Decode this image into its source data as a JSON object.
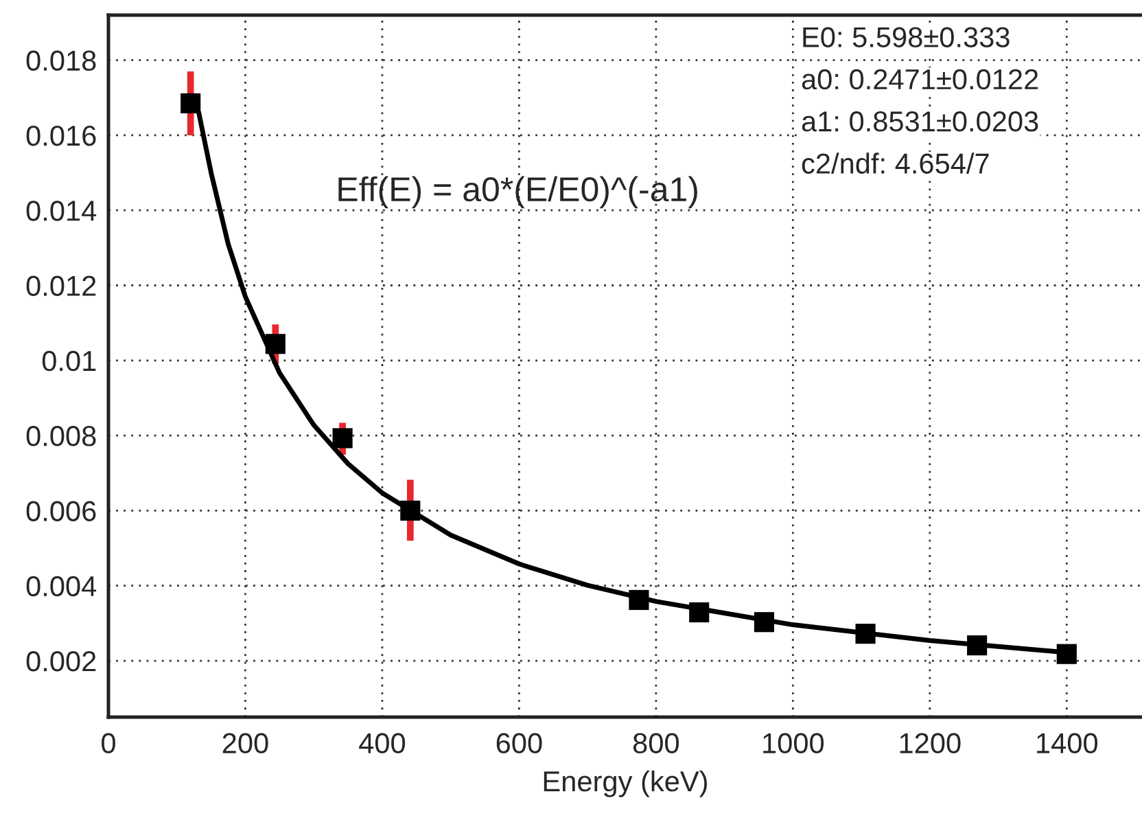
{
  "chart_data": {
    "type": "scatter",
    "xlabel": "Energy (keV)",
    "x": [
      120,
      244,
      342,
      441,
      775,
      863,
      958,
      1106,
      1269,
      1400
    ],
    "series": [
      {
        "color": "#000000",
        "marker": "square",
        "values": [
          0.01685,
          0.01044,
          0.00793,
          0.006,
          0.00362,
          0.00329,
          0.00303,
          0.00272,
          0.00241,
          0.00218
        ],
        "errors": [
          [
            0.016,
            0.0177
          ],
          [
            0.00991,
            0.01096
          ],
          [
            0.00749,
            0.00834
          ],
          [
            0.0052,
            0.00682
          ],
          null,
          null,
          null,
          null,
          null,
          null
        ]
      },
      {
        "type": "line",
        "color": "#000000",
        "line_style": "solid",
        "x": [
          132,
          150,
          175,
          200,
          250,
          300,
          350,
          400,
          500,
          600,
          700,
          800,
          1000,
          1200,
          1400
        ],
        "values": [
          0.0166,
          0.015,
          0.0131,
          0.0117,
          0.00967,
          0.00828,
          0.00725,
          0.00647,
          0.00535,
          0.00458,
          0.00401,
          0.00358,
          0.00296,
          0.00254,
          0.00222
        ]
      }
    ],
    "xlim": [
      0,
      1510
    ],
    "xticks": [
      0,
      200,
      400,
      600,
      800,
      1000,
      1200,
      1400
    ],
    "ylim": [
      0.0005,
      0.0192
    ],
    "yticks": [
      0.002,
      0.004,
      0.006,
      0.008,
      0.01,
      0.012,
      0.014,
      0.016,
      0.018
    ],
    "grid": true,
    "legend": false,
    "annotations": [
      "Eff(E) = a0*(E/E0)^(-a1)",
      "E0: 5.598±0.333",
      "a0: 0.2471±0.0122",
      "a1: 0.8531±0.0203",
      "c2/ndf: 4.654/7"
    ]
  }
}
